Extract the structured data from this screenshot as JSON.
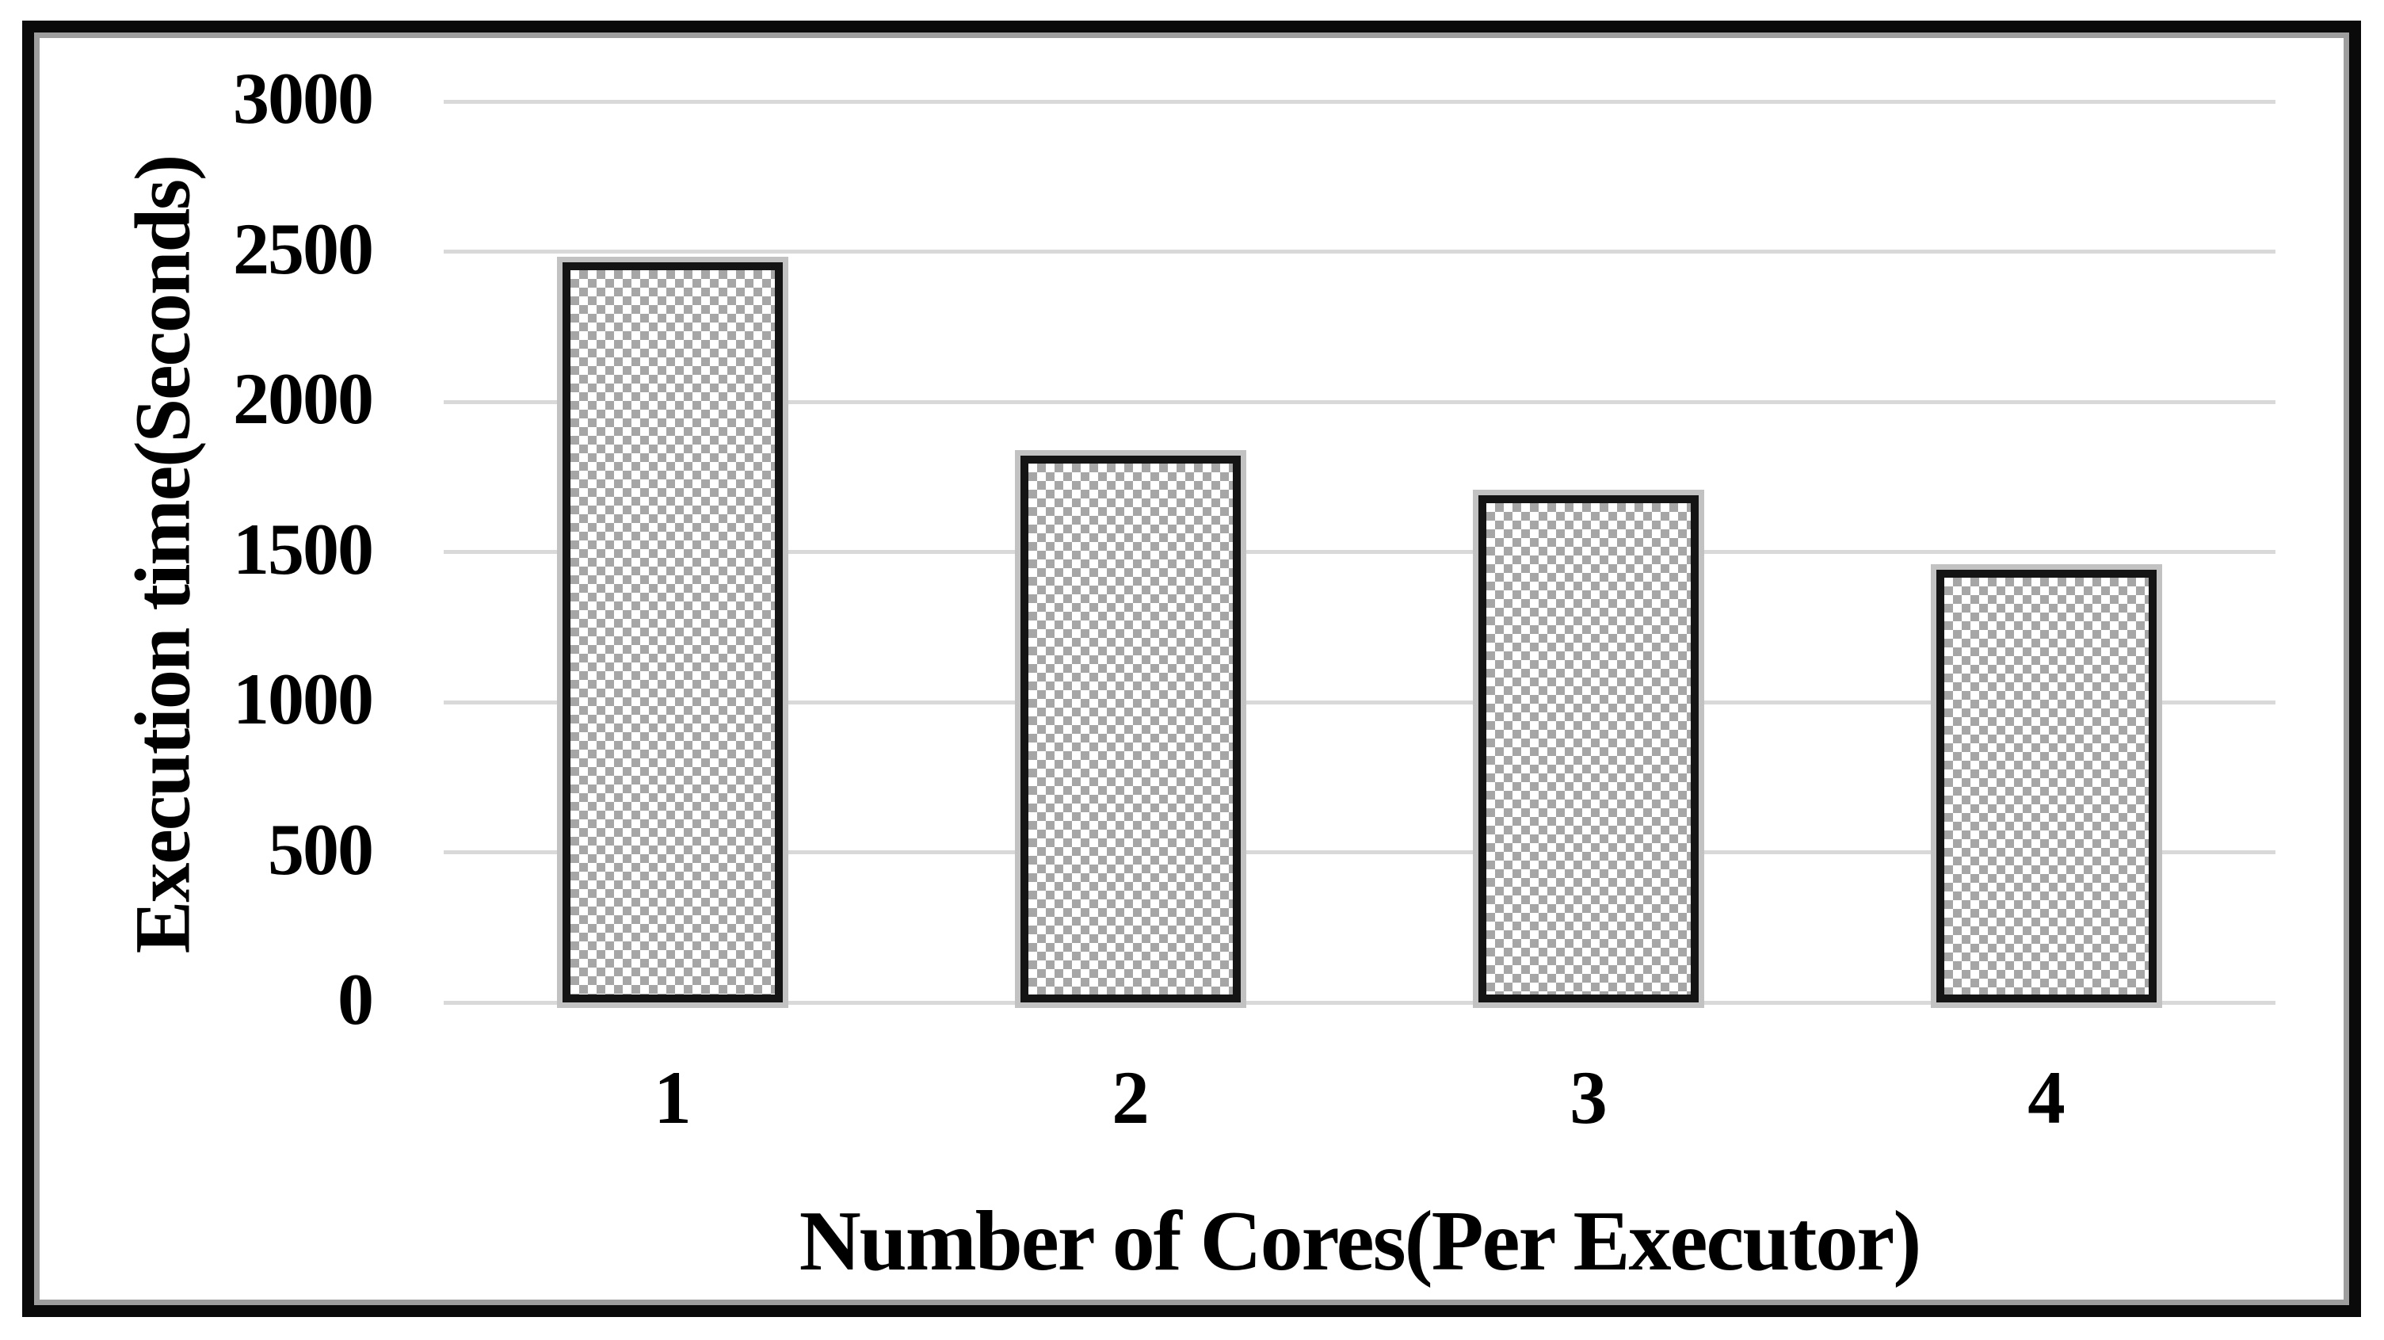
{
  "chart_data": {
    "type": "bar",
    "title": "",
    "categories": [
      "1",
      "2",
      "3",
      "4"
    ],
    "values": [
      2465,
      1820,
      1690,
      1440
    ],
    "xlabel": "Number of Cores(Per Executor)",
    "ylabel": "Execution time(Seconds)",
    "ylim": [
      0,
      3000
    ],
    "yticks": [
      0,
      500,
      1000,
      1500,
      2000,
      2500,
      3000
    ],
    "grid": true,
    "legend_position": "none",
    "bar_fill_style": "checkerboard-pattern",
    "colors": {
      "text": "#000000",
      "background": "#ffffff",
      "gridline": "#d9d9d9",
      "bar_dot": "#a6a6a6",
      "bar_border": "#141414",
      "bar_halo": "#c2c2c2",
      "frame": "#0a0a0a",
      "frame_inner": "#9e9e9e"
    }
  }
}
